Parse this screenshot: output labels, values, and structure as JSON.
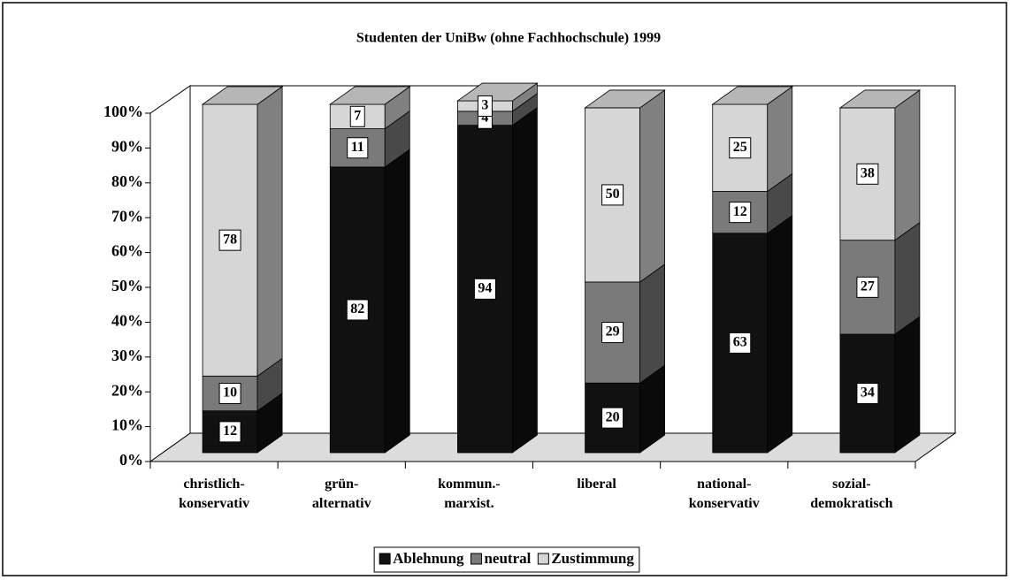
{
  "chart_data": {
    "type": "bar3d_stacked",
    "title": "Studenten der UniBw (ohne Fachhochschule) 1999",
    "categories": [
      "christlich-\nkonservativ",
      "grün-\nalternativ",
      "kommun.-\nmarxist.",
      "liberal",
      "national-\nkonservativ",
      "sozial-\ndemokratisch"
    ],
    "series": [
      {
        "name": "Ablehnung",
        "color": "#111111",
        "values": [
          12,
          82,
          94,
          20,
          63,
          34
        ]
      },
      {
        "name": "neutral",
        "color": "#7a7a7a",
        "values": [
          10,
          11,
          4,
          29,
          12,
          27
        ]
      },
      {
        "name": "Zustimmung",
        "color": "#d6d6d6",
        "values": [
          78,
          7,
          3,
          50,
          25,
          38
        ]
      }
    ],
    "ylim": [
      0,
      100
    ],
    "yticks": [
      {
        "value": 0,
        "label": "0%"
      },
      {
        "value": 10,
        "label": "10%"
      },
      {
        "value": 20,
        "label": "20%"
      },
      {
        "value": 30,
        "label": "30%"
      },
      {
        "value": 40,
        "label": "40%"
      },
      {
        "value": 50,
        "label": "50%"
      },
      {
        "value": 60,
        "label": "60%"
      },
      {
        "value": 70,
        "label": "70%"
      },
      {
        "value": 80,
        "label": "80%"
      },
      {
        "value": 90,
        "label": "90%"
      },
      {
        "value": 100,
        "label": "100%"
      }
    ],
    "legend": "bottom"
  }
}
